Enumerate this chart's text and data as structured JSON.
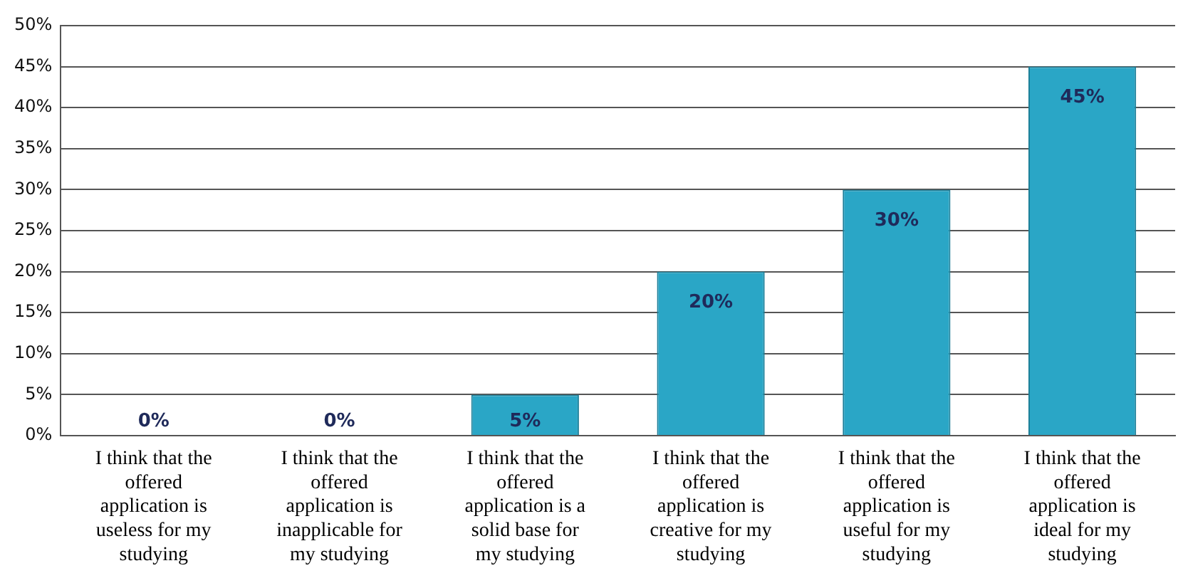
{
  "chart_data": {
    "type": "bar",
    "categories": [
      "I think that the offered application is useless for my studying",
      "I think that the offered application is inapplicable for my studying",
      "I think that the offered application is a solid base for my studying",
      "I think that the offered application is creative for my studying",
      "I think that the offered application is useful for my studying",
      "I think that the offered application is ideal for my studying"
    ],
    "values": [
      0,
      0,
      5,
      20,
      30,
      45
    ],
    "value_labels": [
      "0%",
      "0%",
      "5%",
      "20%",
      "30%",
      "45%"
    ],
    "color": "#2aa6c6",
    "ylim": [
      0,
      50
    ],
    "yticks": [
      {
        "value": 0,
        "label": "0%"
      },
      {
        "value": 5,
        "label": "5%"
      },
      {
        "value": 10,
        "label": "10%"
      },
      {
        "value": 15,
        "label": "15%"
      },
      {
        "value": 20,
        "label": "20%"
      },
      {
        "value": 25,
        "label": "25%"
      },
      {
        "value": 30,
        "label": "30%"
      },
      {
        "value": 35,
        "label": "35%"
      },
      {
        "value": 40,
        "label": "40%"
      },
      {
        "value": 45,
        "label": "45%"
      },
      {
        "value": 50,
        "label": "50%"
      }
    ],
    "grid": "y"
  }
}
